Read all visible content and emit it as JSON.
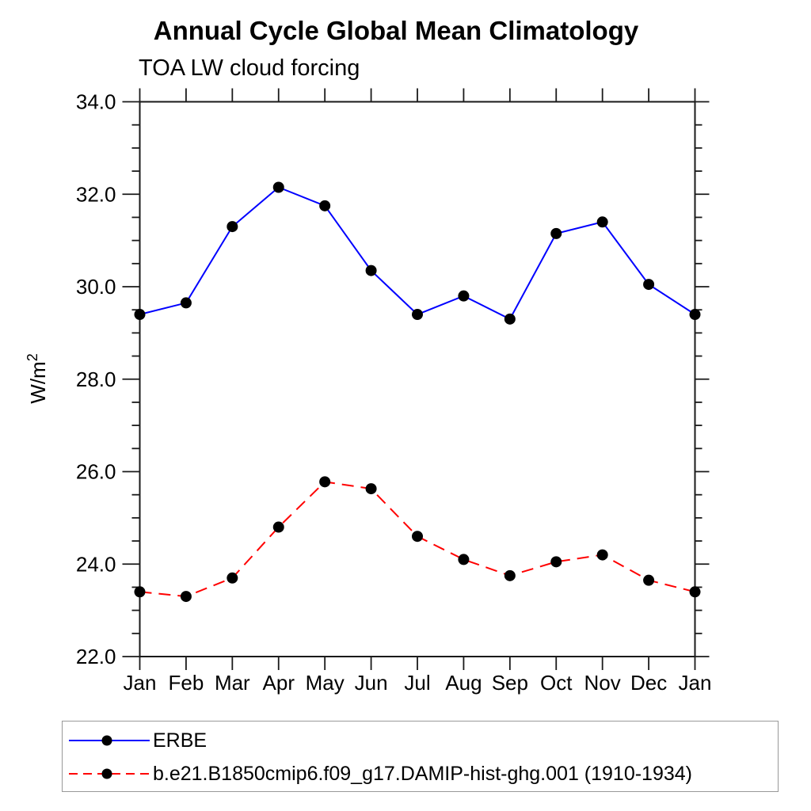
{
  "figure": {
    "title": "Annual Cycle Global Mean Climatology",
    "subtitle": "TOA LW cloud forcing"
  },
  "chart_data": {
    "type": "line",
    "title": "Annual Cycle Global Mean Climatology",
    "subtitle": "TOA LW cloud forcing",
    "xlabel": "",
    "ylabel": "W/m²",
    "ylabel_base": "W/m",
    "ylabel_exponent": "2",
    "categories": [
      "Jan",
      "Feb",
      "Mar",
      "Apr",
      "May",
      "Jun",
      "Jul",
      "Aug",
      "Sep",
      "Oct",
      "Nov",
      "Dec",
      "Jan"
    ],
    "ylim": [
      22.0,
      34.0
    ],
    "ytick_step": 2.0,
    "yminor_step": 0.5,
    "ytick_labels": [
      "22.0",
      "24.0",
      "26.0",
      "28.0",
      "30.0",
      "32.0",
      "34.0"
    ],
    "grid": false,
    "legend_position": "bottom-left-box",
    "series": [
      {
        "name": "ERBE",
        "color": "#0000ff",
        "line_style": "solid",
        "marker": "circle",
        "marker_color": "#000000",
        "values": [
          29.4,
          29.65,
          31.3,
          32.15,
          31.75,
          30.35,
          29.4,
          29.8,
          29.3,
          31.15,
          31.4,
          30.05,
          29.4
        ]
      },
      {
        "name": "b.e21.B1850cmip6.f09_g17.DAMIP-hist-ghg.001 (1910-1934)",
        "color": "#ff0000",
        "line_style": "dashed",
        "marker": "circle",
        "marker_color": "#000000",
        "values": [
          23.4,
          23.3,
          23.7,
          24.8,
          25.78,
          25.63,
          24.6,
          24.1,
          23.75,
          24.05,
          24.2,
          23.65,
          23.4
        ]
      }
    ]
  }
}
